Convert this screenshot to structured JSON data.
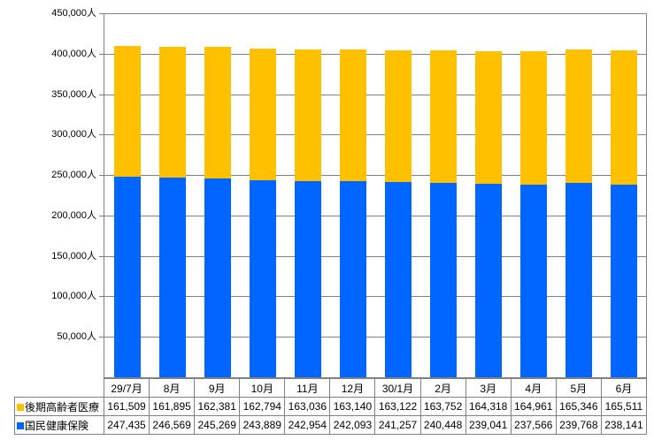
{
  "chart_data": {
    "type": "bar",
    "stacked": true,
    "title": "",
    "xlabel": "",
    "ylabel": "",
    "categories": [
      "29/7月",
      "8月",
      "9月",
      "10月",
      "11月",
      "12月",
      "30/1月",
      "2月",
      "3月",
      "4月",
      "5月",
      "6月"
    ],
    "series": [
      {
        "name": "後期高齢者医療",
        "color": "#FFC000",
        "values": [
          161509,
          161895,
          162381,
          162794,
          163036,
          163140,
          163122,
          163752,
          164318,
          164961,
          165346,
          165511
        ]
      },
      {
        "name": "国民健康保険",
        "color": "#0066FF",
        "values": [
          247435,
          246569,
          245269,
          243889,
          242954,
          242093,
          241257,
          240448,
          239041,
          237566,
          239768,
          238141
        ]
      }
    ],
    "stack_order_bottom_to_top": [
      "国民健康保険",
      "後期高齢者医療"
    ],
    "ylim": [
      0,
      450000
    ],
    "ytick_step": 50000,
    "ytick_suffix": "人",
    "y_tick_labels_top_down": [
      "450,000人",
      "400,000人",
      "350,000人",
      "300,000人",
      "250,000人",
      "200,000人",
      "150,000人",
      "100,000人",
      "50,000人"
    ],
    "grid": true,
    "legend_position": "data-table-left",
    "value_format": "thousands-comma"
  },
  "colors": {
    "background": "#FFFFFF",
    "gridline": "#808080",
    "axis": "#808080",
    "table_border": "#808080",
    "text": "#000000",
    "series_late_elderly": "#FFC000",
    "series_national_health": "#0066FF"
  }
}
